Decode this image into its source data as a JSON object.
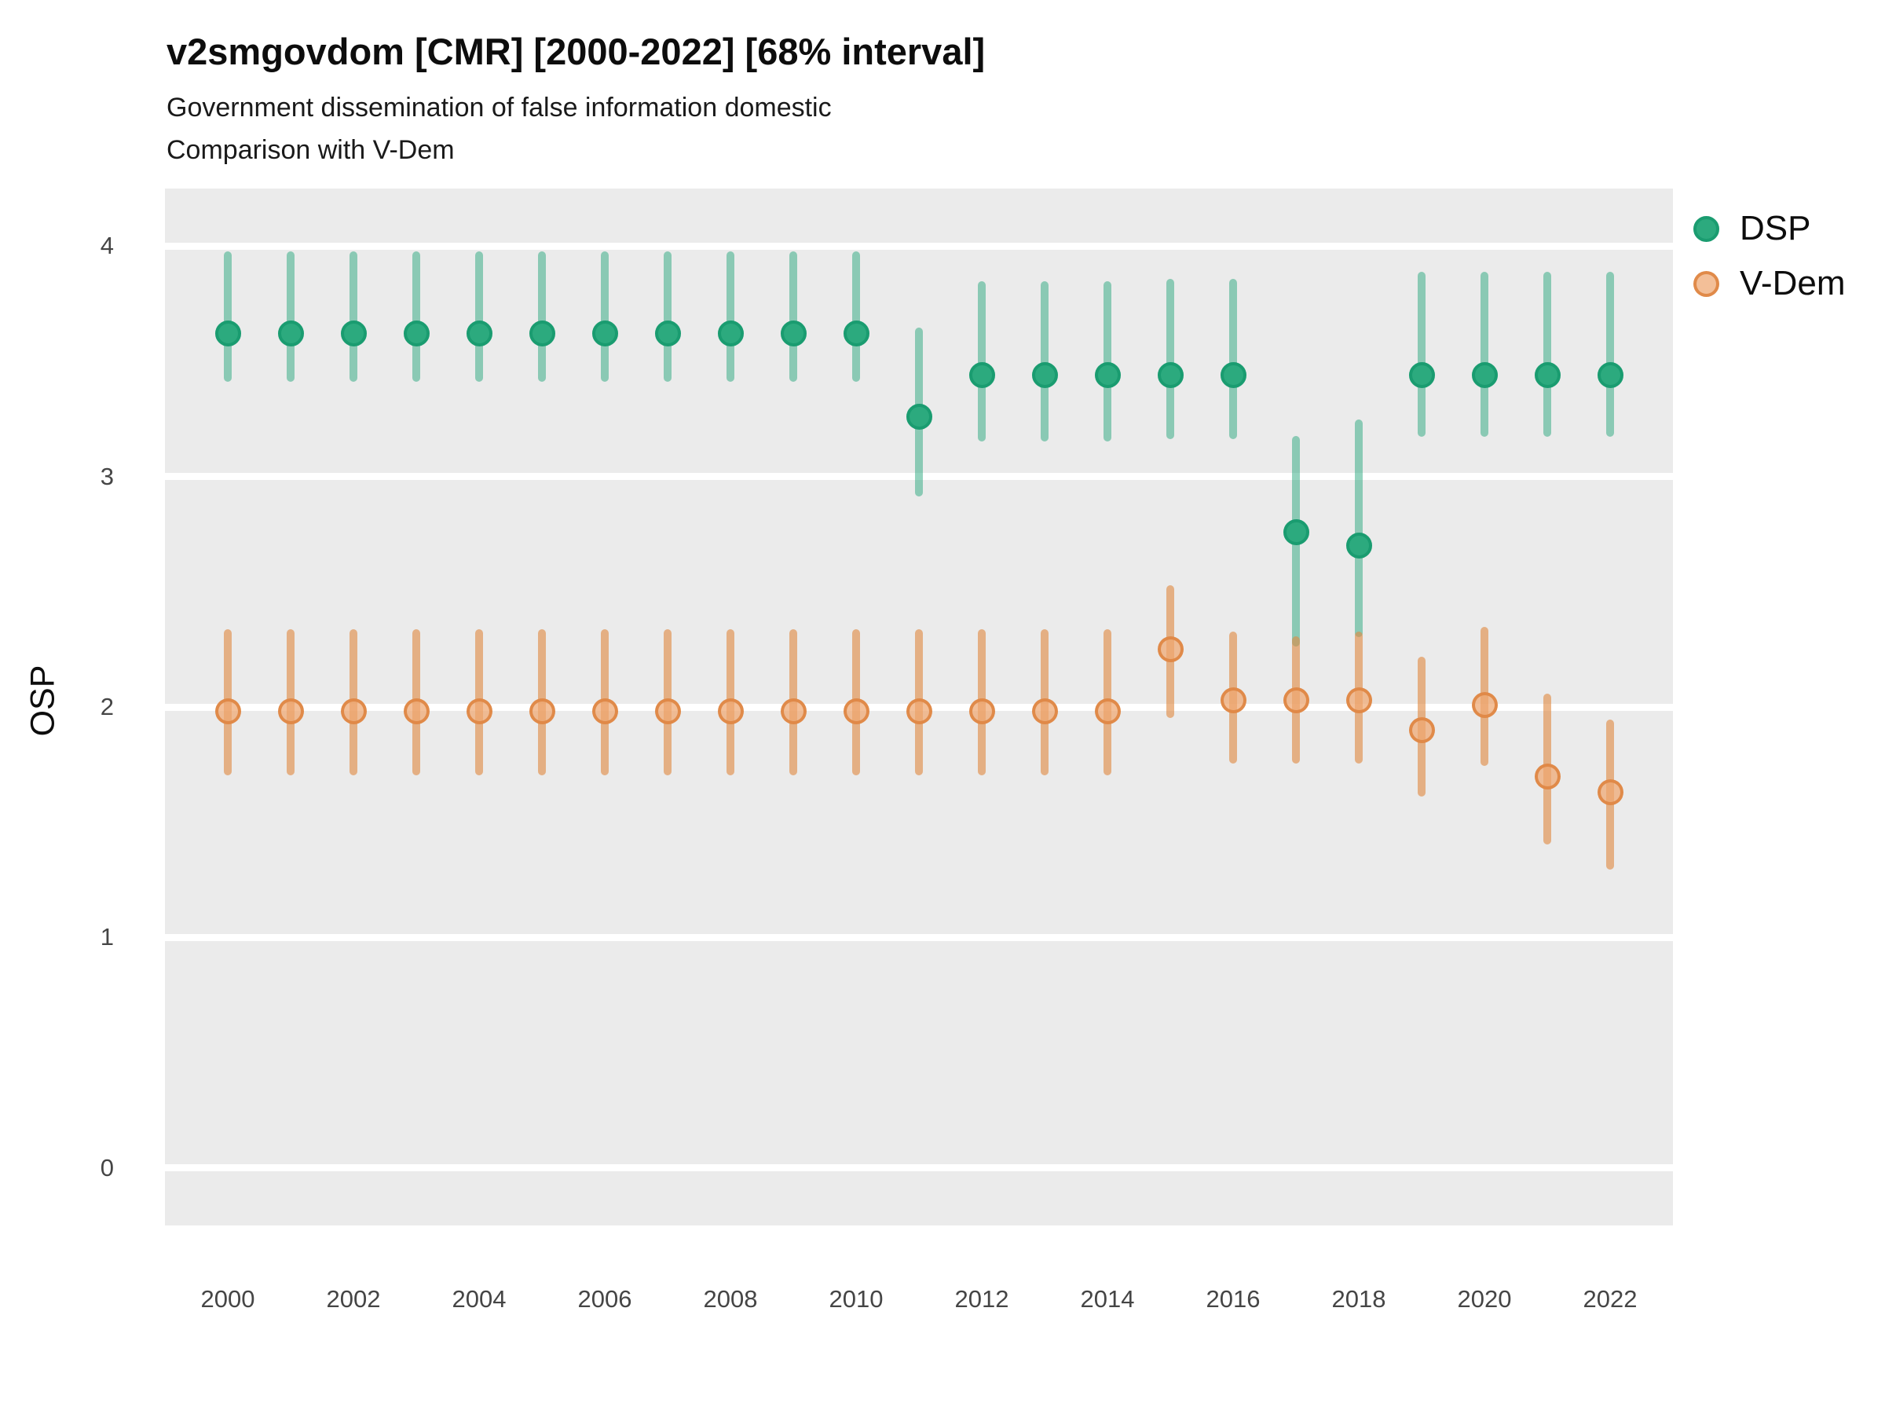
{
  "title": "v2smgovdom [CMR] [2000-2022] [68% interval]",
  "subtitle_line_1": "Government dissemination of false information domestic",
  "subtitle_line_2": "Comparison with V-Dem",
  "y_axis_title": "OSP",
  "legend": {
    "items": [
      {
        "label": "DSP"
      },
      {
        "label": "V-Dem"
      }
    ]
  },
  "colors": {
    "panel_background": "#ebebeb",
    "gridline": "#ffffff",
    "dsp_point_fill": "#2caa7e",
    "dsp_point_border": "#1a9c70",
    "dsp_interval": "rgba(42,168,126,0.5)",
    "vdem_point_fill": "rgba(238,166,112,0.72)",
    "vdem_point_border": "rgba(223,136,70,0.95)",
    "vdem_interval": "rgba(224,138,68,0.62)",
    "tick_label": "#454545",
    "text": "#0d0d0d"
  },
  "chart_data": {
    "type": "scatter",
    "subtype": "pointrange (estimate with 68% interval)",
    "title": "v2smgovdom [CMR] [2000-2022] [68% interval]",
    "xlabel": "",
    "ylabel": "OSP",
    "xlim": [
      1999,
      2023
    ],
    "ylim": [
      -0.25,
      4.25
    ],
    "x_ticks": [
      2000,
      2002,
      2004,
      2006,
      2008,
      2010,
      2012,
      2014,
      2016,
      2018,
      2020,
      2022
    ],
    "y_ticks": [
      0,
      1,
      2,
      3,
      4
    ],
    "grid": "major horizontal white lines on grey panel",
    "legend_position": "right",
    "x": [
      2000,
      2001,
      2002,
      2003,
      2004,
      2005,
      2006,
      2007,
      2008,
      2009,
      2010,
      2011,
      2012,
      2013,
      2014,
      2015,
      2016,
      2017,
      2018,
      2019,
      2020,
      2021,
      2022
    ],
    "series": [
      {
        "name": "DSP",
        "est": [
          3.62,
          3.62,
          3.62,
          3.62,
          3.62,
          3.62,
          3.62,
          3.62,
          3.62,
          3.62,
          3.62,
          3.26,
          3.44,
          3.44,
          3.44,
          3.44,
          3.44,
          2.76,
          2.7,
          3.44,
          3.44,
          3.44,
          3.44
        ],
        "lo": [
          3.43,
          3.43,
          3.43,
          3.43,
          3.43,
          3.43,
          3.43,
          3.43,
          3.43,
          3.43,
          3.43,
          2.93,
          3.17,
          3.17,
          3.17,
          3.18,
          3.18,
          2.28,
          2.32,
          3.19,
          3.19,
          3.19,
          3.19
        ],
        "hi": [
          3.96,
          3.96,
          3.96,
          3.96,
          3.96,
          3.96,
          3.96,
          3.96,
          3.96,
          3.96,
          3.96,
          3.63,
          3.83,
          3.83,
          3.83,
          3.84,
          3.84,
          3.16,
          3.23,
          3.87,
          3.87,
          3.87,
          3.87
        ]
      },
      {
        "name": "V-Dem",
        "est": [
          1.98,
          1.98,
          1.98,
          1.98,
          1.98,
          1.98,
          1.98,
          1.98,
          1.98,
          1.98,
          1.98,
          1.98,
          1.98,
          1.98,
          1.98,
          2.25,
          2.03,
          2.03,
          2.03,
          1.9,
          2.01,
          1.7,
          1.63
        ],
        "lo": [
          1.72,
          1.72,
          1.72,
          1.72,
          1.72,
          1.72,
          1.72,
          1.72,
          1.72,
          1.72,
          1.72,
          1.72,
          1.72,
          1.72,
          1.72,
          1.97,
          1.77,
          1.77,
          1.77,
          1.63,
          1.76,
          1.42,
          1.31
        ],
        "hi": [
          2.32,
          2.32,
          2.32,
          2.32,
          2.32,
          2.32,
          2.32,
          2.32,
          2.32,
          2.32,
          2.32,
          2.32,
          2.32,
          2.32,
          2.32,
          2.51,
          2.31,
          2.29,
          2.31,
          2.2,
          2.33,
          2.04,
          1.93
        ]
      }
    ]
  }
}
